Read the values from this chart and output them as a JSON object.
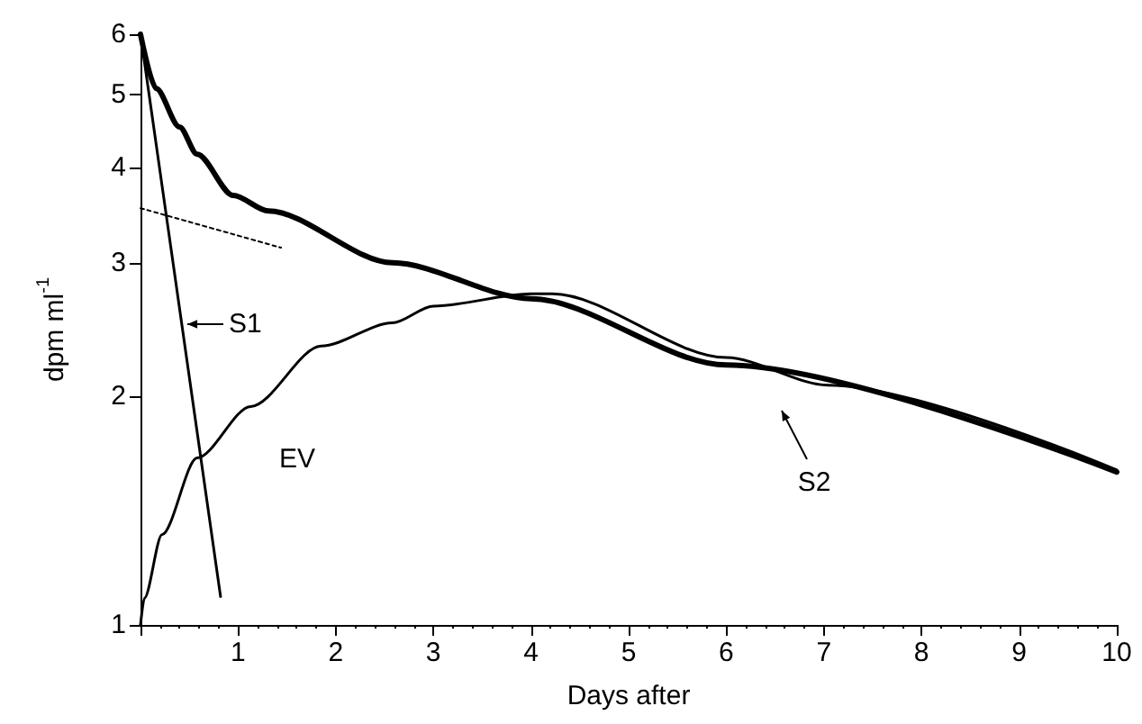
{
  "chart_data": {
    "type": "line",
    "xlabel": "Days after",
    "ylabel": "dpm ml$^{-1}$",
    "xlim": [
      0,
      10
    ],
    "xticks": [
      {
        "value": 0,
        "label": null
      },
      1,
      2,
      3,
      4,
      5,
      6,
      7,
      8,
      9,
      10
    ],
    "ylim": [
      1,
      6
    ],
    "yticks": [
      1,
      2,
      3,
      4,
      5,
      6
    ],
    "log": "y",
    "grid": false,
    "marker": "none",
    "series": [
      {
        "color": "#000000",
        "line_style": "solid",
        "x": [
          0,
          0.16,
          0.4,
          0.58,
          0.95,
          1.31,
          2.58,
          4.0,
          6.0,
          10
        ],
        "values": [
          6,
          5.09,
          4.53,
          4.17,
          3.68,
          3.51,
          3.0,
          2.69,
          2.2,
          1.59
        ]
      },
      {
        "color": "#000000",
        "line_style": "solid",
        "x": [
          0,
          0.82
        ],
        "values": [
          6,
          1.09
        ]
      },
      {
        "color": "#000000",
        "line_style": "dotted",
        "x": [
          0,
          1.44
        ],
        "values": [
          3.54,
          3.14
        ]
      },
      {
        "color": "#000000",
        "line_style": "solid",
        "x": [
          0,
          0.04,
          0.22,
          0.58,
          1.13,
          1.85,
          2.58,
          3.0,
          4.0,
          4.22,
          6.0,
          7.04,
          10
        ],
        "values": [
          1,
          1.085,
          1.315,
          1.66,
          1.94,
          2.33,
          2.5,
          2.63,
          2.73,
          2.73,
          2.25,
          2.07,
          1.6
        ]
      }
    ],
    "annotations": [
      "S1",
      "EV",
      "S2"
    ]
  }
}
